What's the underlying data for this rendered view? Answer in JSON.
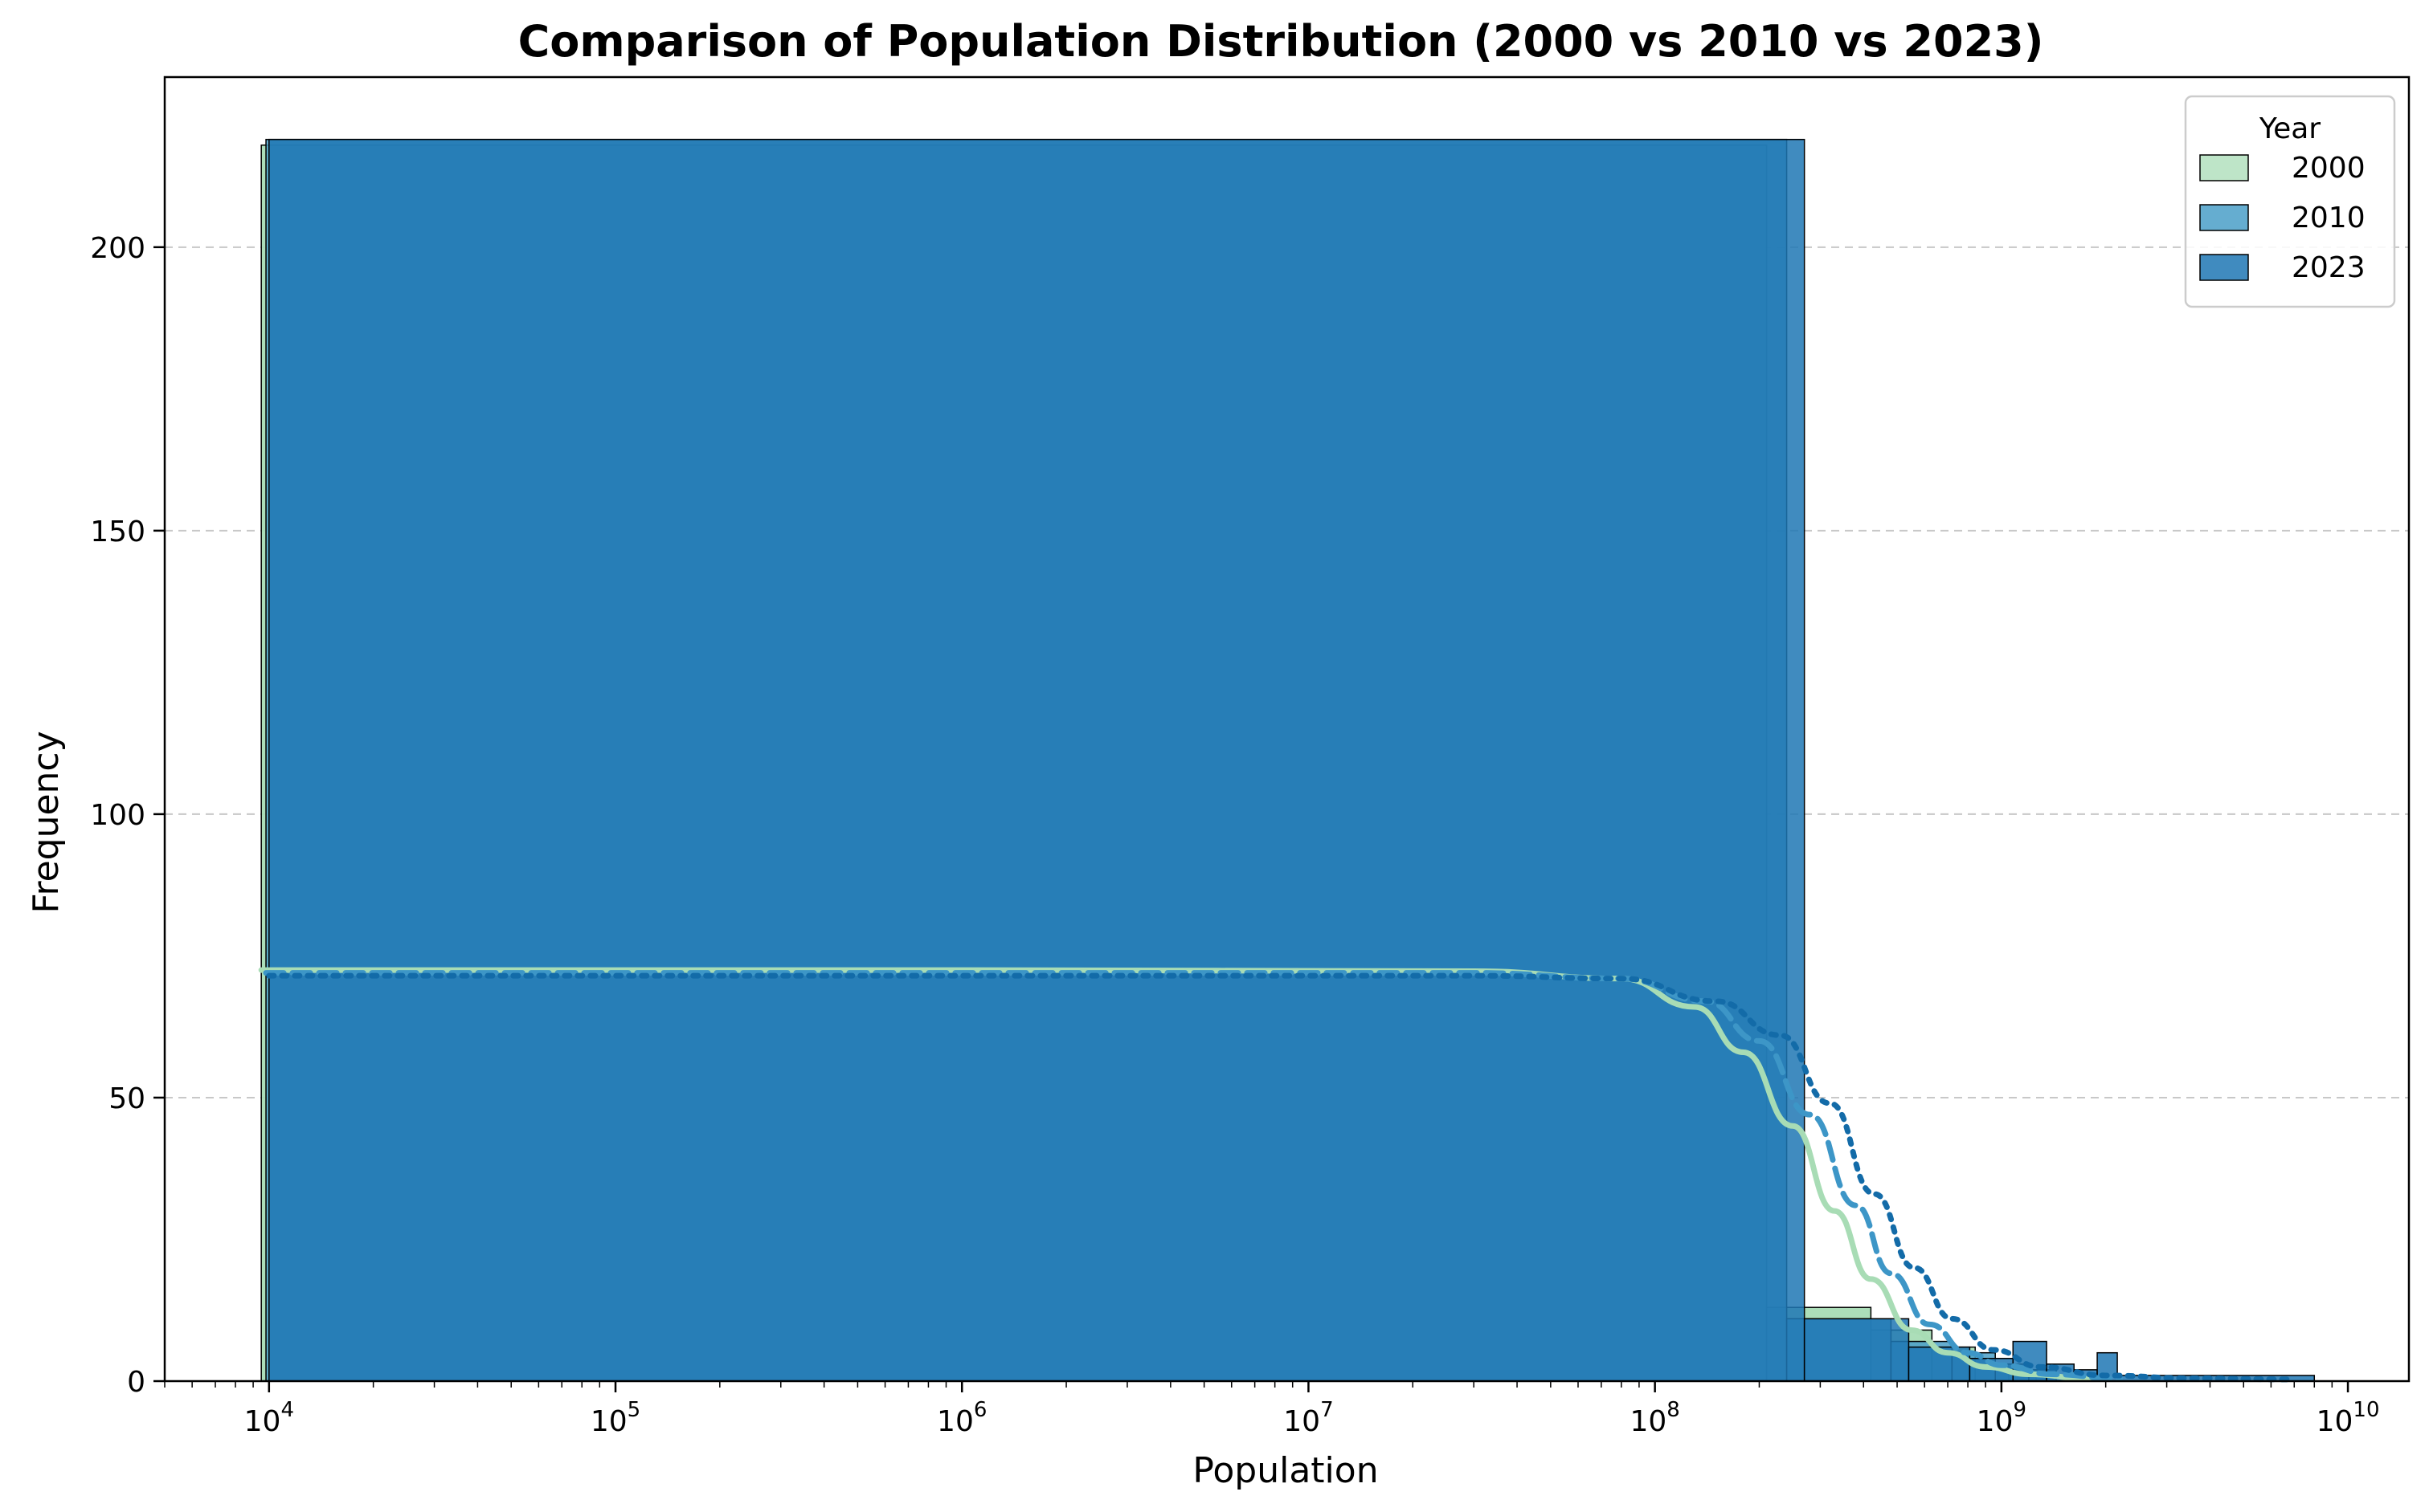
{
  "chart_data": {
    "type": "histogram",
    "title": "Comparison of Population Distribution (2000 vs 2010 vs 2023)",
    "xlabel": "Population",
    "ylabel": "Frequency",
    "xscale": "log",
    "xlim": [
      5000,
      15000000000
    ],
    "ylim": [
      0,
      230
    ],
    "xticks": [
      {
        "value": 10000,
        "base": "10",
        "exp": "4"
      },
      {
        "value": 100000,
        "base": "10",
        "exp": "5"
      },
      {
        "value": 1000000,
        "base": "10",
        "exp": "6"
      },
      {
        "value": 10000000,
        "base": "10",
        "exp": "7"
      },
      {
        "value": 100000000,
        "base": "10",
        "exp": "8"
      },
      {
        "value": 1000000000,
        "base": "10",
        "exp": "9"
      },
      {
        "value": 10000000000,
        "base": "10",
        "exp": "10"
      }
    ],
    "yticks": [
      {
        "value": 0,
        "label": "0"
      },
      {
        "value": 50,
        "label": "50"
      },
      {
        "value": 100,
        "label": "100"
      },
      {
        "value": 150,
        "label": "150"
      },
      {
        "value": 200,
        "label": "200"
      }
    ],
    "grid": {
      "y": true,
      "x": false,
      "style": "dashed"
    },
    "legend": {
      "title": "Year",
      "placement": "top-right"
    },
    "series": [
      {
        "name": "2000",
        "color": "#a8dcb5",
        "kde_style": "solid",
        "bins": [
          {
            "x0": 9500,
            "x1": 210000000,
            "count": 218
          },
          {
            "x0": 210000000,
            "x1": 420000000,
            "count": 13
          },
          {
            "x0": 420000000,
            "x1": 630000000,
            "count": 9
          },
          {
            "x0": 630000000,
            "x1": 840000000,
            "count": 6
          },
          {
            "x0": 840000000,
            "x1": 1050000000,
            "count": 3
          },
          {
            "x0": 1050000000,
            "x1": 1260000000,
            "count": 2
          },
          {
            "x0": 1260000000,
            "x1": 1470000000,
            "count": 1
          }
        ],
        "kde": [
          {
            "x": 9500,
            "y": 72.5
          },
          {
            "x": 1000000,
            "y": 72.5
          },
          {
            "x": 30000000,
            "y": 72.3
          },
          {
            "x": 80000000,
            "y": 71
          },
          {
            "x": 130000000,
            "y": 66
          },
          {
            "x": 180000000,
            "y": 58
          },
          {
            "x": 250000000,
            "y": 45
          },
          {
            "x": 330000000,
            "y": 30
          },
          {
            "x": 420000000,
            "y": 18
          },
          {
            "x": 550000000,
            "y": 9
          },
          {
            "x": 700000000,
            "y": 5
          },
          {
            "x": 900000000,
            "y": 2.5
          },
          {
            "x": 1200000000,
            "y": 1.2
          },
          {
            "x": 1800000000,
            "y": 0.4
          }
        ]
      },
      {
        "name": "2010",
        "color": "#4a9fc8",
        "kde_style": "dashed",
        "bins": [
          {
            "x0": 9800,
            "x1": 240000000,
            "count": 219
          },
          {
            "x0": 240000000,
            "x1": 480000000,
            "count": 11
          },
          {
            "x0": 480000000,
            "x1": 720000000,
            "count": 7
          },
          {
            "x0": 720000000,
            "x1": 960000000,
            "count": 5
          },
          {
            "x0": 960000000,
            "x1": 1200000000,
            "count": 3
          },
          {
            "x0": 1200000000,
            "x1": 1440000000,
            "count": 2
          },
          {
            "x0": 1440000000,
            "x1": 1680000000,
            "count": 1
          }
        ],
        "kde": [
          {
            "x": 9800,
            "y": 72
          },
          {
            "x": 1000000,
            "y": 72
          },
          {
            "x": 30000000,
            "y": 72
          },
          {
            "x": 80000000,
            "y": 71
          },
          {
            "x": 140000000,
            "y": 67
          },
          {
            "x": 200000000,
            "y": 60
          },
          {
            "x": 280000000,
            "y": 47
          },
          {
            "x": 380000000,
            "y": 31
          },
          {
            "x": 480000000,
            "y": 19
          },
          {
            "x": 620000000,
            "y": 10
          },
          {
            "x": 800000000,
            "y": 5
          },
          {
            "x": 1000000000,
            "y": 2.8
          },
          {
            "x": 1400000000,
            "y": 1.2
          },
          {
            "x": 2200000000,
            "y": 0.4
          }
        ]
      },
      {
        "name": "2023",
        "color": "#1f77b4",
        "kde_style": "dotted",
        "bins": [
          {
            "x0": 10000,
            "x1": 270000000,
            "count": 219
          },
          {
            "x0": 270000000,
            "x1": 540000000,
            "count": 11
          },
          {
            "x0": 540000000,
            "x1": 810000000,
            "count": 6
          },
          {
            "x0": 810000000,
            "x1": 1080000000,
            "count": 4
          },
          {
            "x0": 1080000000,
            "x1": 1350000000,
            "count": 7
          },
          {
            "x0": 1350000000,
            "x1": 1620000000,
            "count": 3
          },
          {
            "x0": 1620000000,
            "x1": 1890000000,
            "count": 2
          },
          {
            "x0": 1890000000,
            "x1": 2160000000,
            "count": 5
          },
          {
            "x0": 2160000000,
            "x1": 8000000000,
            "count": 1
          }
        ],
        "kde": [
          {
            "x": 10000,
            "y": 71.5
          },
          {
            "x": 1000000,
            "y": 71.5
          },
          {
            "x": 30000000,
            "y": 71.5
          },
          {
            "x": 80000000,
            "y": 71
          },
          {
            "x": 150000000,
            "y": 67
          },
          {
            "x": 230000000,
            "y": 61
          },
          {
            "x": 320000000,
            "y": 49
          },
          {
            "x": 430000000,
            "y": 33
          },
          {
            "x": 560000000,
            "y": 20
          },
          {
            "x": 720000000,
            "y": 11
          },
          {
            "x": 950000000,
            "y": 5.5
          },
          {
            "x": 1300000000,
            "y": 2.5
          },
          {
            "x": 2000000000,
            "y": 1
          },
          {
            "x": 3500000000,
            "y": 0.5
          },
          {
            "x": 7000000000,
            "y": 0.3
          }
        ]
      }
    ]
  }
}
